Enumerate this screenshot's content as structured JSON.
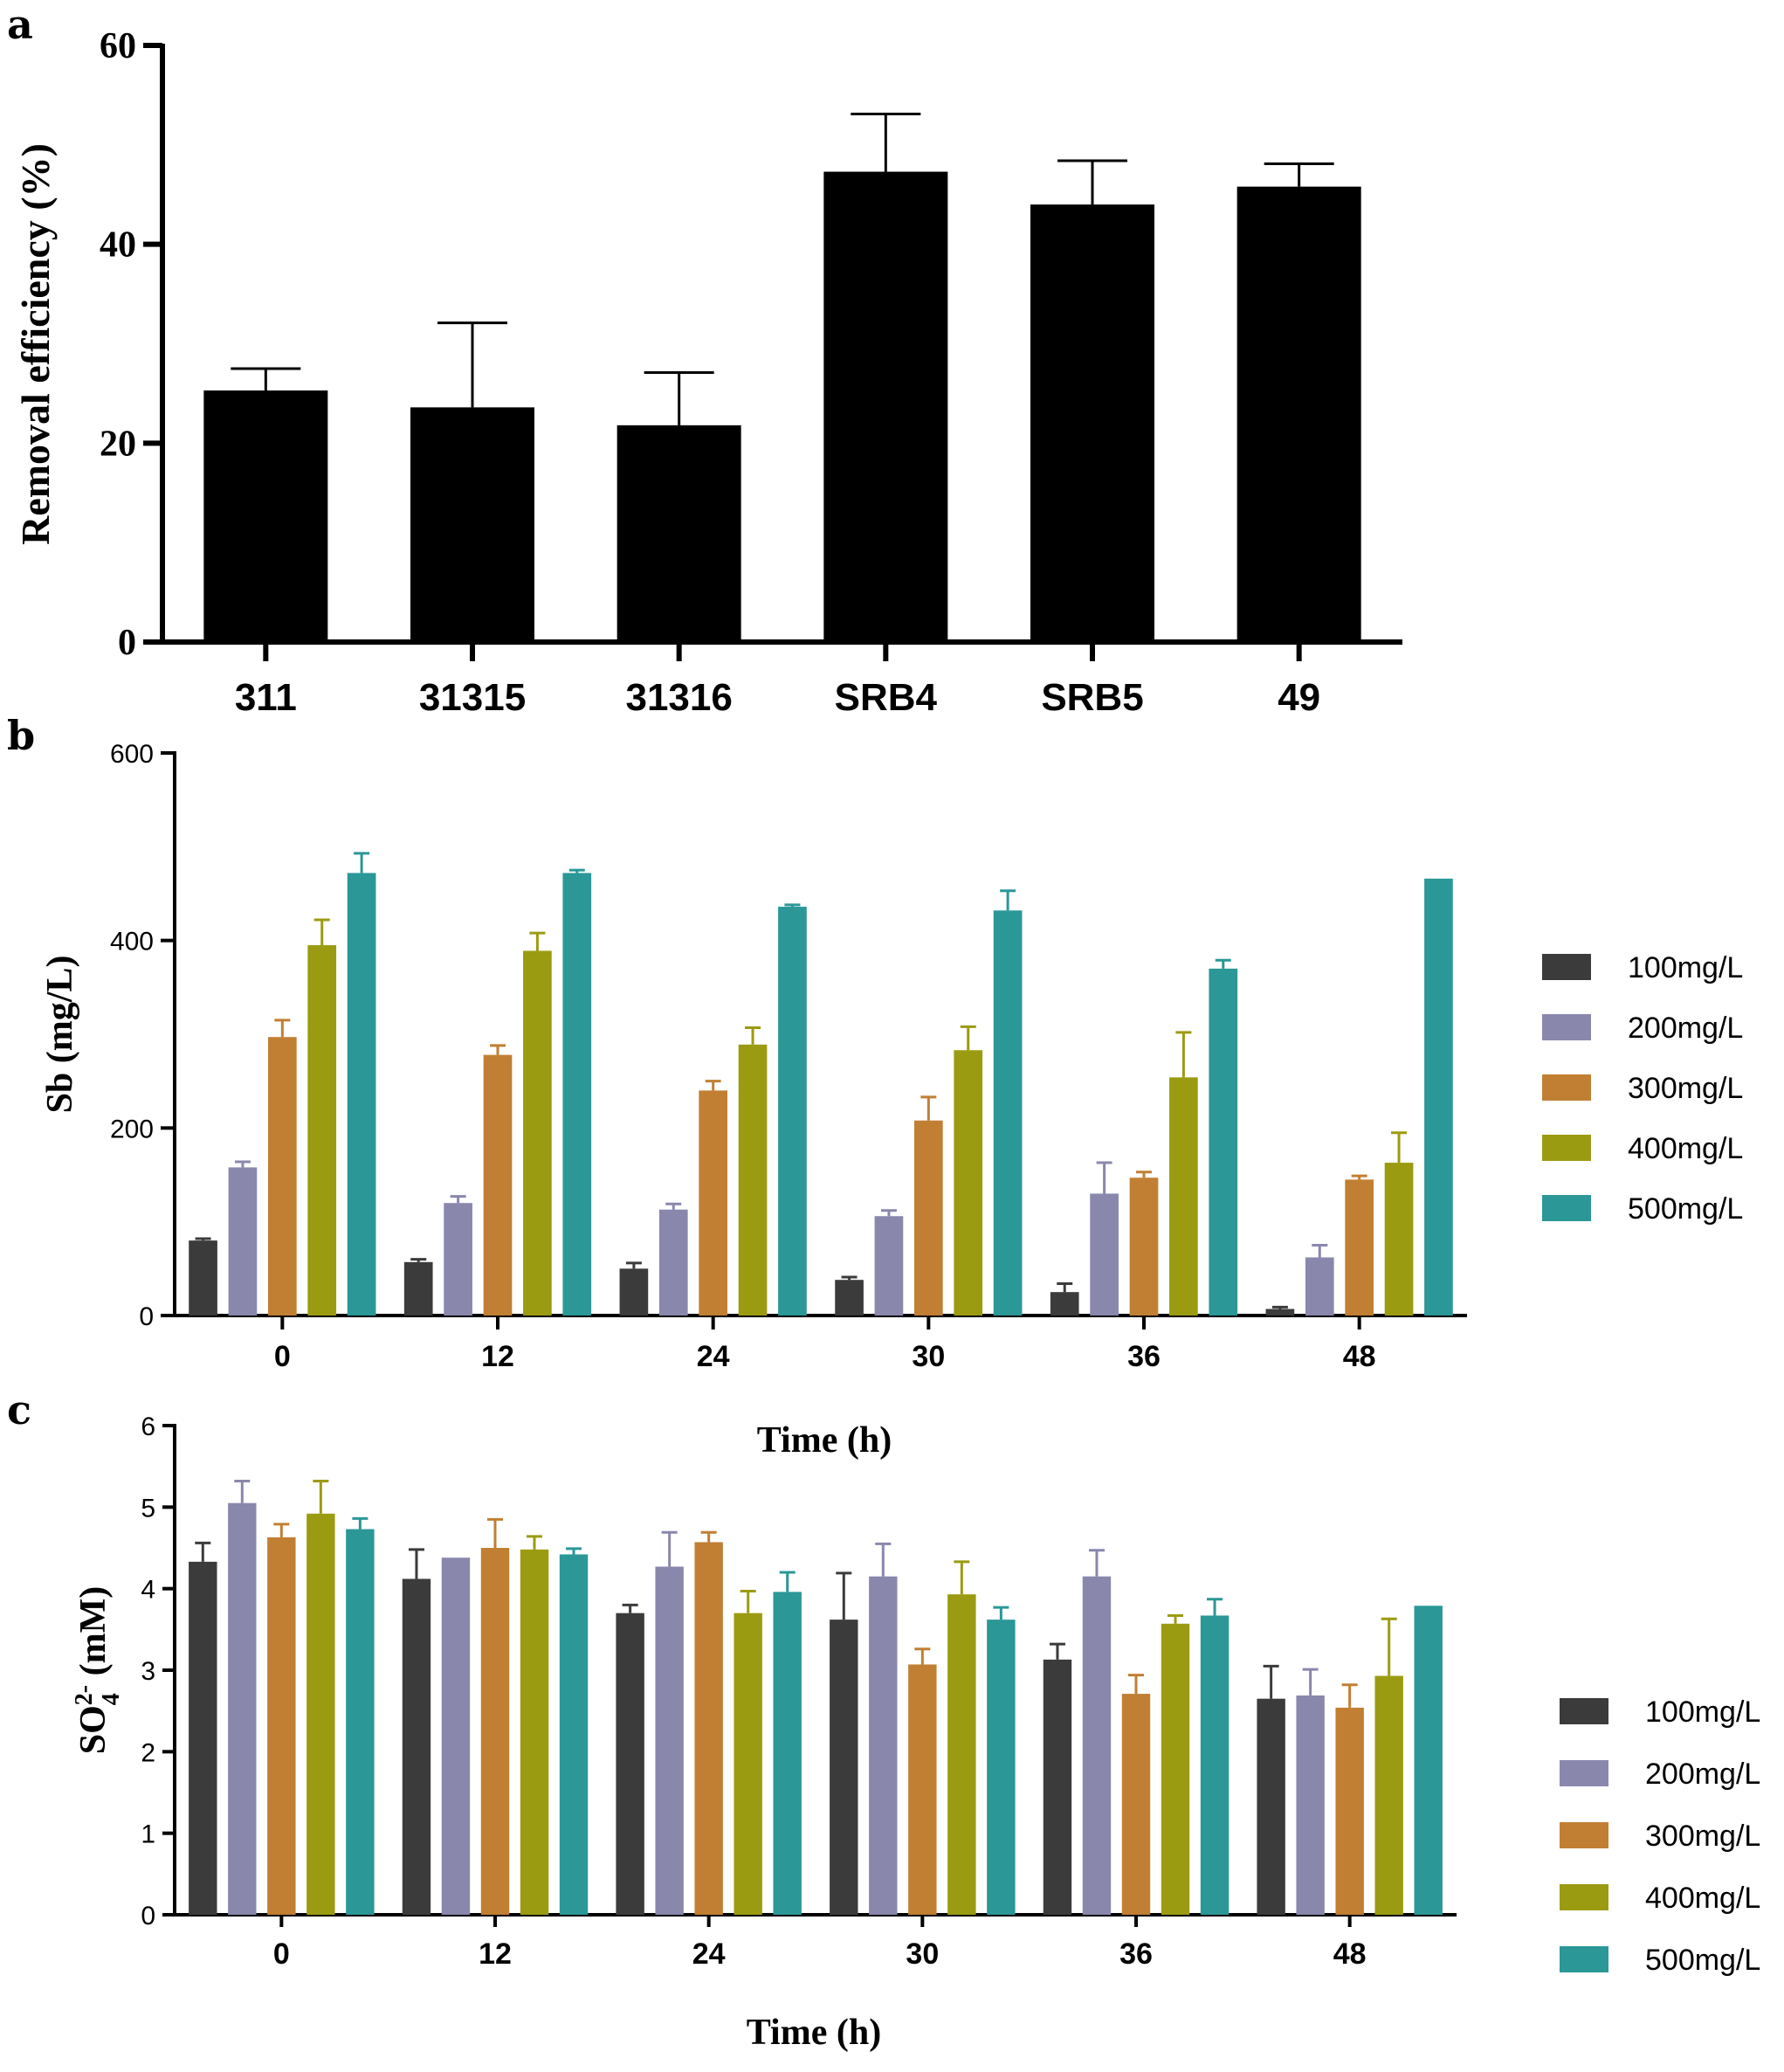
{
  "chart_data": [
    {
      "panel": "a",
      "type": "bar",
      "title": "",
      "xlabel": "",
      "ylabel": "Removal efficiency (%)",
      "ylim": [
        0,
        60
      ],
      "yticks": [
        "0",
        "20",
        "40",
        "60"
      ],
      "categories": [
        "311",
        "31315",
        "31316",
        "SRB4",
        "SRB5",
        "49"
      ],
      "series": [
        {
          "name": "Removal efficiency",
          "color": "#000000",
          "values": [
            25.3,
            23.6,
            21.8,
            47.3,
            44.0,
            45.8
          ],
          "errors": [
            2.2,
            8.5,
            5.3,
            5.8,
            4.4,
            2.3
          ]
        }
      ]
    },
    {
      "panel": "b",
      "type": "bar",
      "title": "",
      "xlabel": "Time (h)",
      "ylabel": "Sb (mg/L)",
      "ylim": [
        0,
        600
      ],
      "yticks": [
        "0",
        "200",
        "400",
        "600"
      ],
      "categories": [
        "0",
        "12",
        "24",
        "30",
        "36",
        "48"
      ],
      "series": [
        {
          "name": "100mg/L",
          "color": "#3b3b3b",
          "values": [
            80,
            57,
            50,
            38,
            25,
            7
          ],
          "errors": [
            2,
            3,
            6,
            3,
            9,
            2
          ]
        },
        {
          "name": "200mg/L",
          "color": "#8a87ad",
          "values": [
            158,
            120,
            113,
            106,
            130,
            62
          ],
          "errors": [
            6,
            7,
            6,
            6,
            33,
            13
          ]
        },
        {
          "name": "300mg/L",
          "color": "#c17f33",
          "values": [
            297,
            278,
            240,
            208,
            147,
            145
          ],
          "errors": [
            18,
            10,
            10,
            25,
            6,
            4
          ]
        },
        {
          "name": "400mg/L",
          "color": "#9b9b12",
          "values": [
            395,
            389,
            289,
            283,
            254,
            163
          ],
          "errors": [
            27,
            19,
            18,
            25,
            48,
            32
          ]
        },
        {
          "name": "500mg/L",
          "color": "#2b9797",
          "values": [
            472,
            472,
            436,
            432,
            370,
            466
          ],
          "errors": [
            21,
            3,
            2,
            21,
            9,
            0
          ]
        }
      ]
    },
    {
      "panel": "c",
      "type": "bar",
      "title": "",
      "xlabel": "Time (h)",
      "ylabel_main": "SO",
      "ylabel_sub": "4",
      "ylabel_sup": "2-",
      "ylabel_unit": " (mM)",
      "ylim": [
        0,
        6
      ],
      "yticks": [
        "0",
        "1",
        "2",
        "3",
        "4",
        "5",
        "6"
      ],
      "categories": [
        "0",
        "12",
        "24",
        "30",
        "36",
        "48"
      ],
      "series": [
        {
          "name": "100mg/L",
          "color": "#3b3b3b",
          "values": [
            4.33,
            4.12,
            3.7,
            3.62,
            3.13,
            2.65
          ],
          "errors": [
            0.23,
            0.36,
            0.1,
            0.57,
            0.19,
            0.4
          ]
        },
        {
          "name": "200mg/L",
          "color": "#8a87ad",
          "values": [
            5.05,
            4.38,
            4.27,
            4.15,
            4.15,
            2.69
          ],
          "errors": [
            0.27,
            0.0,
            0.42,
            0.4,
            0.32,
            0.32
          ]
        },
        {
          "name": "300mg/L",
          "color": "#c17f33",
          "values": [
            4.63,
            4.5,
            4.57,
            3.07,
            2.71,
            2.54
          ],
          "errors": [
            0.16,
            0.35,
            0.12,
            0.19,
            0.23,
            0.28
          ]
        },
        {
          "name": "400mg/L",
          "color": "#9b9b12",
          "values": [
            4.92,
            4.48,
            3.7,
            3.93,
            3.57,
            2.93
          ],
          "errors": [
            0.4,
            0.16,
            0.27,
            0.4,
            0.1,
            0.7
          ]
        },
        {
          "name": "500mg/L",
          "color": "#2b9797",
          "values": [
            4.73,
            4.42,
            3.96,
            3.62,
            3.67,
            3.79
          ],
          "errors": [
            0.13,
            0.07,
            0.24,
            0.15,
            0.2,
            0.0
          ]
        }
      ]
    }
  ],
  "labels": {
    "a": "a",
    "b": "b",
    "c": "c"
  }
}
